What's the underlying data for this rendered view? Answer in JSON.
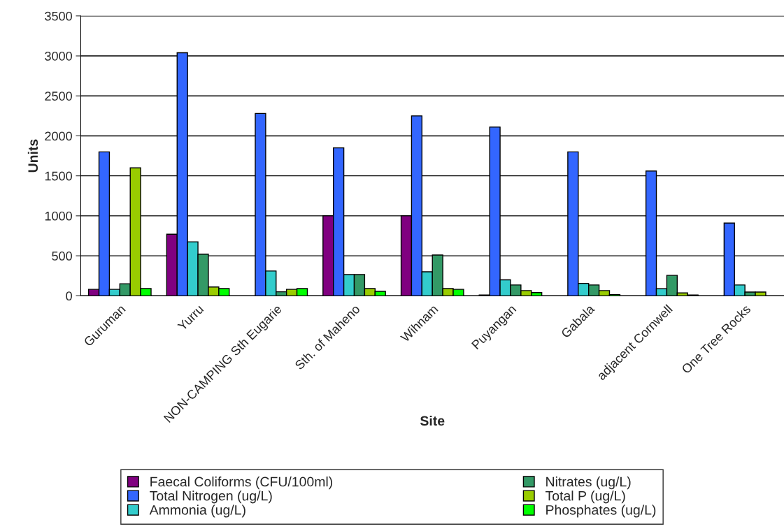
{
  "chart_data": {
    "type": "bar",
    "xlabel": "Site",
    "ylabel": "Units",
    "categories": [
      "Guruman",
      "Yurru",
      "NON-CAMPING Sth Eugarie",
      "Sth. of Maheno",
      "Wihnam",
      "Puyangan",
      "Gabala",
      "adjacent Cornwell",
      "One Tree Rocks"
    ],
    "series": [
      {
        "name": "Faecal Coliforms (CFU/100ml)",
        "color": "#800080",
        "values": [
          80,
          770,
          null,
          1000,
          1000,
          10,
          null,
          null,
          null
        ]
      },
      {
        "name": "Total Nitrogen (ug/L)",
        "color": "#3366ff",
        "values": [
          1800,
          3040,
          2280,
          1850,
          2250,
          2110,
          1800,
          1560,
          910
        ]
      },
      {
        "name": "Ammonia (ug/L)",
        "color": "#33cccc",
        "values": [
          80,
          675,
          310,
          265,
          300,
          200,
          155,
          88,
          135
        ]
      },
      {
        "name": "Nitrates (ug/L)",
        "color": "#339966",
        "values": [
          150,
          520,
          50,
          265,
          510,
          135,
          135,
          255,
          47
        ]
      },
      {
        "name": "Total P (ug/L)",
        "color": "#99cc00",
        "values": [
          1600,
          110,
          80,
          90,
          90,
          65,
          65,
          35,
          47
        ]
      },
      {
        "name": "Phosphates (ug/L)",
        "color": "#00ff00",
        "values": [
          90,
          90,
          90,
          55,
          80,
          40,
          15,
          10,
          null
        ]
      }
    ],
    "ylim": [
      0,
      3500
    ],
    "yticks": [
      0,
      500,
      1000,
      1500,
      2000,
      2500,
      3000,
      3500
    ],
    "grid": "y",
    "legend": "bottom"
  }
}
